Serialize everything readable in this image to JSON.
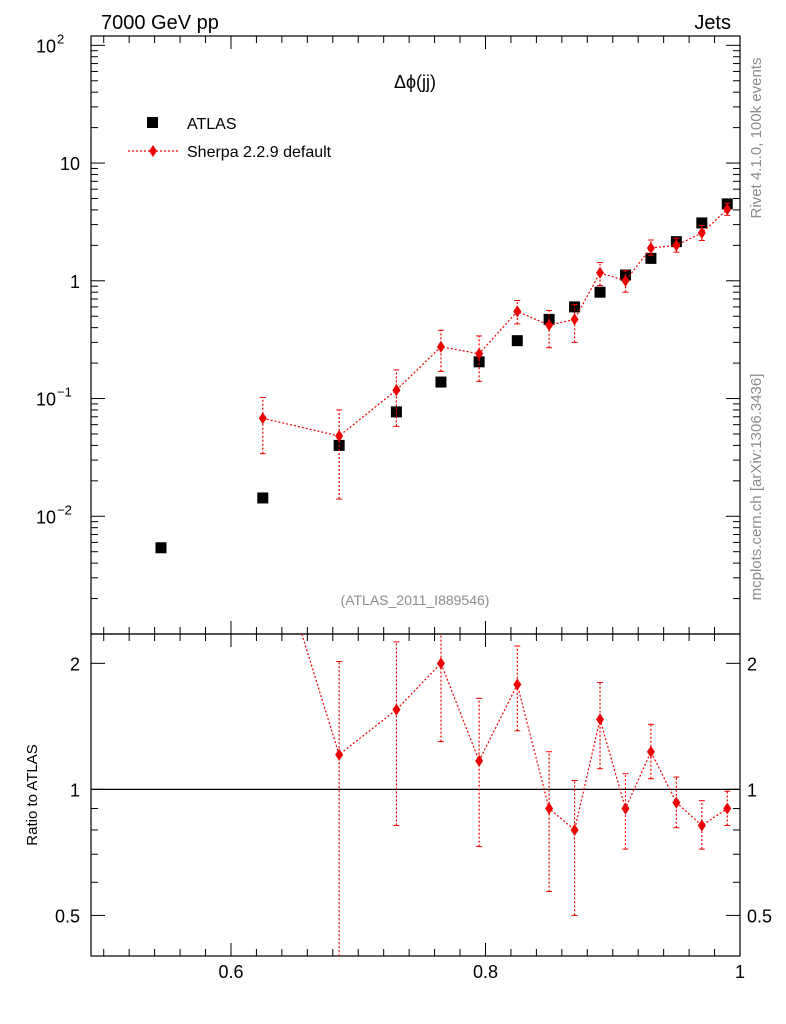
{
  "header": {
    "energy_label": "7000 GeV pp",
    "category_label": "Jets"
  },
  "side_labels": {
    "rivet": "Rivet 4.1.0,  100k events",
    "source": "mcplots.cern.ch [arXiv:1306.3436]"
  },
  "chart_data": {
    "type": "scatter",
    "title": "Δϕ(jj)",
    "analysis_id": "(ATLAS_2011_I889546)",
    "xlim": [
      0.49,
      1.0
    ],
    "x_ticks": [
      {
        "v": 0.6,
        "label": "0.6"
      },
      {
        "v": 0.8,
        "label": "0.8"
      },
      {
        "v": 1.0,
        "label": "1"
      }
    ],
    "main": {
      "yscale": "log",
      "ylim": [
        0.001,
        120
      ],
      "y_ticks": [
        {
          "v": 0.01,
          "base": "10",
          "exp": "−2"
        },
        {
          "v": 0.1,
          "base": "10",
          "exp": "−1"
        },
        {
          "v": 1,
          "label": "1"
        },
        {
          "v": 10,
          "label": "10"
        },
        {
          "v": 100,
          "base": "10",
          "exp": "2"
        }
      ],
      "series": [
        {
          "name": "ATLAS",
          "color": "#000000",
          "marker": "square",
          "points": [
            {
              "x": 0.545,
              "y": 0.0054
            },
            {
              "x": 0.625,
              "y": 0.0143
            },
            {
              "x": 0.685,
              "y": 0.04
            },
            {
              "x": 0.73,
              "y": 0.077
            },
            {
              "x": 0.765,
              "y": 0.138
            },
            {
              "x": 0.795,
              "y": 0.205
            },
            {
              "x": 0.825,
              "y": 0.31
            },
            {
              "x": 0.85,
              "y": 0.47
            },
            {
              "x": 0.87,
              "y": 0.6
            },
            {
              "x": 0.89,
              "y": 0.8
            },
            {
              "x": 0.91,
              "y": 1.12
            },
            {
              "x": 0.93,
              "y": 1.55
            },
            {
              "x": 0.95,
              "y": 2.15
            },
            {
              "x": 0.97,
              "y": 3.1
            },
            {
              "x": 0.99,
              "y": 4.5
            }
          ]
        },
        {
          "name": "Sherpa 2.2.9 default",
          "color": "#ee0000",
          "marker": "diamond",
          "line": "dotted",
          "points": [
            {
              "x": 0.625,
              "y": 0.068,
              "lo": 0.034,
              "hi": 0.102
            },
            {
              "x": 0.685,
              "y": 0.048,
              "lo": 0.014,
              "hi": 0.08
            },
            {
              "x": 0.73,
              "y": 0.118,
              "lo": 0.058,
              "hi": 0.175
            },
            {
              "x": 0.765,
              "y": 0.275,
              "lo": 0.17,
              "hi": 0.38
            },
            {
              "x": 0.795,
              "y": 0.24,
              "lo": 0.14,
              "hi": 0.34
            },
            {
              "x": 0.825,
              "y": 0.55,
              "lo": 0.43,
              "hi": 0.68
            },
            {
              "x": 0.85,
              "y": 0.42,
              "lo": 0.27,
              "hi": 0.56
            },
            {
              "x": 0.87,
              "y": 0.47,
              "lo": 0.3,
              "hi": 0.63
            },
            {
              "x": 0.89,
              "y": 1.17,
              "lo": 0.91,
              "hi": 1.43
            },
            {
              "x": 0.91,
              "y": 1.0,
              "lo": 0.8,
              "hi": 1.22
            },
            {
              "x": 0.93,
              "y": 1.9,
              "lo": 1.65,
              "hi": 2.22
            },
            {
              "x": 0.95,
              "y": 2.0,
              "lo": 1.75,
              "hi": 2.3
            },
            {
              "x": 0.97,
              "y": 2.55,
              "lo": 2.2,
              "hi": 2.95
            },
            {
              "x": 0.99,
              "y": 4.05,
              "lo": 3.6,
              "hi": 4.55
            }
          ]
        }
      ]
    },
    "ratio": {
      "ylabel": "Ratio to ATLAS",
      "yscale": "log",
      "ylim": [
        0.4,
        2.35
      ],
      "reference": 1,
      "y_ticks": [
        {
          "v": 0.5,
          "label": "0.5"
        },
        {
          "v": 1,
          "label": "1"
        },
        {
          "v": 2,
          "label": "2"
        }
      ],
      "series": [
        {
          "name": "Sherpa 2.2.9 default",
          "color": "#ee0000",
          "offscale_start": {
            "x": 0.625,
            "y": 4.7
          },
          "points": [
            {
              "x": 0.685,
              "y": 1.21,
              "lo": 0.35,
              "hi": 2.02
            },
            {
              "x": 0.73,
              "y": 1.55,
              "lo": 0.82,
              "hi": 2.25
            },
            {
              "x": 0.765,
              "y": 2.0,
              "lo": 1.3,
              "hi": 2.72
            },
            {
              "x": 0.795,
              "y": 1.17,
              "lo": 0.73,
              "hi": 1.65
            },
            {
              "x": 0.825,
              "y": 1.78,
              "lo": 1.38,
              "hi": 2.2
            },
            {
              "x": 0.85,
              "y": 0.9,
              "lo": 0.57,
              "hi": 1.23
            },
            {
              "x": 0.87,
              "y": 0.8,
              "lo": 0.5,
              "hi": 1.05
            },
            {
              "x": 0.89,
              "y": 1.47,
              "lo": 1.12,
              "hi": 1.8
            },
            {
              "x": 0.91,
              "y": 0.9,
              "lo": 0.72,
              "hi": 1.09
            },
            {
              "x": 0.93,
              "y": 1.23,
              "lo": 1.06,
              "hi": 1.43
            },
            {
              "x": 0.95,
              "y": 0.93,
              "lo": 0.81,
              "hi": 1.07
            },
            {
              "x": 0.97,
              "y": 0.82,
              "lo": 0.72,
              "hi": 0.94
            },
            {
              "x": 0.99,
              "y": 0.9,
              "lo": 0.82,
              "hi": 0.99
            }
          ]
        }
      ]
    }
  }
}
